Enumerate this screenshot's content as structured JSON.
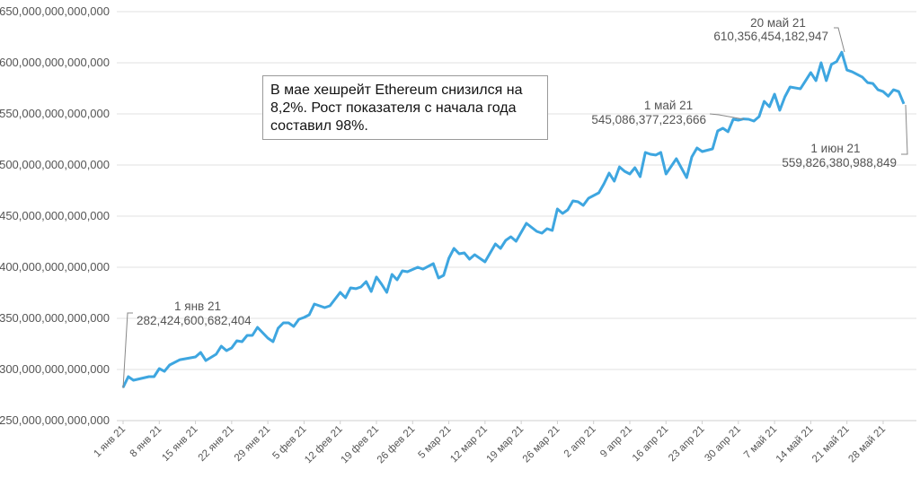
{
  "chart_data": {
    "type": "line",
    "title": "",
    "xlabel": "",
    "ylabel": "",
    "ylim": [
      250000000000000,
      650000000000000
    ],
    "y_ticks": [
      250000000000000,
      300000000000000,
      350000000000000,
      400000000000000,
      450000000000000,
      500000000000000,
      550000000000000,
      600000000000000,
      650000000000000
    ],
    "y_tick_labels": [
      "250,000,000,000,000",
      "300,000,000,000,000",
      "350,000,000,000,000",
      "400,000,000,000,000",
      "450,000,000,000,000",
      "500,000,000,000,000",
      "550,000,000,000,000",
      "600,000,000,000,000",
      "650,000,000,000,000"
    ],
    "x_ticks": [
      "2021-01-01",
      "2021-01-08",
      "2021-01-15",
      "2021-01-22",
      "2021-01-29",
      "2021-02-05",
      "2021-02-12",
      "2021-02-19",
      "2021-02-26",
      "2021-03-05",
      "2021-03-12",
      "2021-03-19",
      "2021-03-26",
      "2021-04-02",
      "2021-04-09",
      "2021-04-16",
      "2021-04-23",
      "2021-04-30",
      "2021-05-07",
      "2021-05-14",
      "2021-05-21",
      "2021-05-28"
    ],
    "x_tick_labels": [
      "1 янв 21",
      "8 янв 21",
      "15 янв 21",
      "22 янв 21",
      "29 янв 21",
      "5 фев 21",
      "12 фев 21",
      "19 фев 21",
      "26 фев 21",
      "5 мар 21",
      "12 мар 21",
      "19 мар 21",
      "26 мар 21",
      "2 апр 21",
      "9 апр 21",
      "16 апр 21",
      "23 апр 21",
      "30 апр 21",
      "7 май 21",
      "14 май 21",
      "21 май 21",
      "28 май 21"
    ],
    "grid": true,
    "line_color": "#3ea6e0",
    "points": [
      [
        "2021-01-01",
        282424600682404.0
      ],
      [
        "2021-01-02",
        293000000000000.0
      ],
      [
        "2021-01-03",
        289500000000000.0
      ],
      [
        "2021-01-06",
        293000000000000.0
      ],
      [
        "2021-01-07",
        293000000000000.0
      ],
      [
        "2021-01-08",
        300900000000000.0
      ],
      [
        "2021-01-09",
        298200000000000.0
      ],
      [
        "2021-01-10",
        304400000000000.0
      ],
      [
        "2021-01-12",
        309600000000000.0
      ],
      [
        "2021-01-15",
        312300000000000.0
      ],
      [
        "2021-01-16",
        316700000000000.0
      ],
      [
        "2021-01-17",
        308800000000000.0
      ],
      [
        "2021-01-19",
        314900000000000.0
      ],
      [
        "2021-01-20",
        322800000000000.0
      ],
      [
        "2021-01-21",
        318400000000000.0
      ],
      [
        "2021-01-22",
        321100000000000.0
      ],
      [
        "2021-01-23",
        328100000000000.0
      ],
      [
        "2021-01-24",
        327200000000000.0
      ],
      [
        "2021-01-25",
        333300000000000.0
      ],
      [
        "2021-01-26",
        333300000000000.0
      ],
      [
        "2021-01-27",
        341200000000000.0
      ],
      [
        "2021-01-29",
        330700000000000.0
      ],
      [
        "2021-01-30",
        327200000000000.0
      ],
      [
        "2021-01-31",
        340400000000000.0
      ],
      [
        "2021-02-01",
        345600000000000.0
      ],
      [
        "2021-02-02",
        345600000000000.0
      ],
      [
        "2021-02-03",
        342100000000000.0
      ],
      [
        "2021-02-04",
        349100000000000.0
      ],
      [
        "2021-02-05",
        350900000000000.0
      ],
      [
        "2021-02-06",
        353500000000000.0
      ],
      [
        "2021-02-07",
        364000000000000.0
      ],
      [
        "2021-02-09",
        360500000000000.0
      ],
      [
        "2021-02-10",
        362300000000000.0
      ],
      [
        "2021-02-12",
        375400000000000.0
      ],
      [
        "2021-02-13",
        370200000000000.0
      ],
      [
        "2021-02-14",
        379800000000000.0
      ],
      [
        "2021-02-15",
        379000000000000.0
      ],
      [
        "2021-02-16",
        380700000000000.0
      ],
      [
        "2021-02-17",
        386000000000000.0
      ],
      [
        "2021-02-18",
        376300000000000.0
      ],
      [
        "2021-02-19",
        390400000000000.0
      ],
      [
        "2021-02-20",
        383300000000000.0
      ],
      [
        "2021-02-21",
        375400000000000.0
      ],
      [
        "2021-02-22",
        393000000000000.0
      ],
      [
        "2021-02-23",
        387700000000000.0
      ],
      [
        "2021-02-24",
        396500000000000.0
      ],
      [
        "2021-02-25",
        395600000000000.0
      ],
      [
        "2021-02-27",
        400000000000000.0
      ],
      [
        "2021-02-28",
        398200000000000.0
      ],
      [
        "2021-03-02",
        403500000000000.0
      ],
      [
        "2021-03-03",
        389500000000000.0
      ],
      [
        "2021-03-04",
        392100000000000.0
      ],
      [
        "2021-03-05",
        408800000000000.0
      ],
      [
        "2021-03-06",
        418400000000000.0
      ],
      [
        "2021-03-07",
        413200000000000.0
      ],
      [
        "2021-03-08",
        414000000000000.0
      ],
      [
        "2021-03-09",
        407900000000000.0
      ],
      [
        "2021-03-10",
        412300000000000.0
      ],
      [
        "2021-03-12",
        405300000000000.0
      ],
      [
        "2021-03-14",
        422800000000000.0
      ],
      [
        "2021-03-15",
        418400000000000.0
      ],
      [
        "2021-03-16",
        426300000000000.0
      ],
      [
        "2021-03-17",
        429800000000000.0
      ],
      [
        "2021-03-18",
        425400000000000.0
      ],
      [
        "2021-03-20",
        443000000000000.0
      ],
      [
        "2021-03-22",
        435100000000000.0
      ],
      [
        "2021-03-23",
        433300000000000.0
      ],
      [
        "2021-03-24",
        437700000000000.0
      ],
      [
        "2021-03-25",
        436000000000000.0
      ],
      [
        "2021-03-26",
        457000000000000.0
      ],
      [
        "2021-03-27",
        452600000000000.0
      ],
      [
        "2021-03-28",
        456100000000000.0
      ],
      [
        "2021-03-29",
        464900000000000.0
      ],
      [
        "2021-03-30",
        464000000000000.0
      ],
      [
        "2021-03-31",
        460500000000000.0
      ],
      [
        "2021-04-01",
        467500000000000.0
      ],
      [
        "2021-04-03",
        472800000000000.0
      ],
      [
        "2021-04-04",
        481600000000000.0
      ],
      [
        "2021-04-05",
        492100000000000.0
      ],
      [
        "2021-04-06",
        484200000000000.0
      ],
      [
        "2021-04-07",
        498200000000000.0
      ],
      [
        "2021-04-08",
        493900000000000.0
      ],
      [
        "2021-04-09",
        491200000000000.0
      ],
      [
        "2021-04-10",
        497400000000000.0
      ],
      [
        "2021-04-11",
        488600000000000.0
      ],
      [
        "2021-04-12",
        512300000000000.0
      ],
      [
        "2021-04-13",
        510500000000000.0
      ],
      [
        "2021-04-14",
        509700000000000.0
      ],
      [
        "2021-04-15",
        512300000000000.0
      ],
      [
        "2021-04-16",
        491200000000000.0
      ],
      [
        "2021-04-18",
        506100000000000.0
      ],
      [
        "2021-04-20",
        487700000000000.0
      ],
      [
        "2021-04-21",
        507900000000000.0
      ],
      [
        "2021-04-22",
        516700000000000.0
      ],
      [
        "2021-04-23",
        513200000000000.0
      ],
      [
        "2021-04-25",
        515800000000000.0
      ],
      [
        "2021-04-26",
        533300000000000.0
      ],
      [
        "2021-04-27",
        536000000000000.0
      ],
      [
        "2021-04-28",
        532500000000000.0
      ],
      [
        "2021-04-29",
        544700000000000.0
      ],
      [
        "2021-04-30",
        543900000000000.0
      ],
      [
        "2021-05-01",
        545086377223666.0
      ],
      [
        "2021-05-02",
        544700000000000.0
      ],
      [
        "2021-05-03",
        543000000000000.0
      ],
      [
        "2021-05-04",
        547400000000000.0
      ],
      [
        "2021-05-05",
        562300000000000.0
      ],
      [
        "2021-05-06",
        557000000000000.0
      ],
      [
        "2021-05-07",
        569300000000000.0
      ],
      [
        "2021-05-08",
        553500000000000.0
      ],
      [
        "2021-05-09",
        566700000000000.0
      ],
      [
        "2021-05-10",
        576300000000000.0
      ],
      [
        "2021-05-12",
        574600000000000.0
      ],
      [
        "2021-05-13",
        582500000000000.0
      ],
      [
        "2021-05-14",
        590400000000000.0
      ],
      [
        "2021-05-15",
        582500000000000.0
      ],
      [
        "2021-05-16",
        600000000000000.0
      ],
      [
        "2021-05-17",
        582500000000000.0
      ],
      [
        "2021-05-18",
        598400000000000.0
      ],
      [
        "2021-05-19",
        601100000000000.0
      ],
      [
        "2021-05-20",
        610356454182947.0
      ],
      [
        "2021-05-21",
        592900000000000.0
      ],
      [
        "2021-05-22",
        591100000000000.0
      ],
      [
        "2021-05-24",
        585900000000000.0
      ],
      [
        "2021-05-25",
        580600000000000.0
      ],
      [
        "2021-05-26",
        579700000000000.0
      ],
      [
        "2021-05-27",
        573600000000000.0
      ],
      [
        "2021-05-28",
        571800000000000.0
      ],
      [
        "2021-05-29",
        567400000000000.0
      ],
      [
        "2021-05-30",
        573600000000000.0
      ],
      [
        "2021-05-31",
        571800000000000.0
      ],
      [
        "2021-06-01",
        559826380988849.0
      ]
    ],
    "annotations": [
      {
        "date": "2021-01-01",
        "label": "1 янв 21",
        "value_label": "282,424,600,682,404"
      },
      {
        "date": "2021-05-01",
        "label": "1 май 21",
        "value_label": "545,086,377,223,666"
      },
      {
        "date": "2021-05-20",
        "label": "20 май 21",
        "value_label": "610,356,454,182,947"
      },
      {
        "date": "2021-06-01",
        "label": "1 июн 21",
        "value_label": "559,826,380,988,849"
      }
    ],
    "note": "В мае хешрейт Ethereum снизился на 8,2%. Рост показателя с начала года составил 98%."
  }
}
